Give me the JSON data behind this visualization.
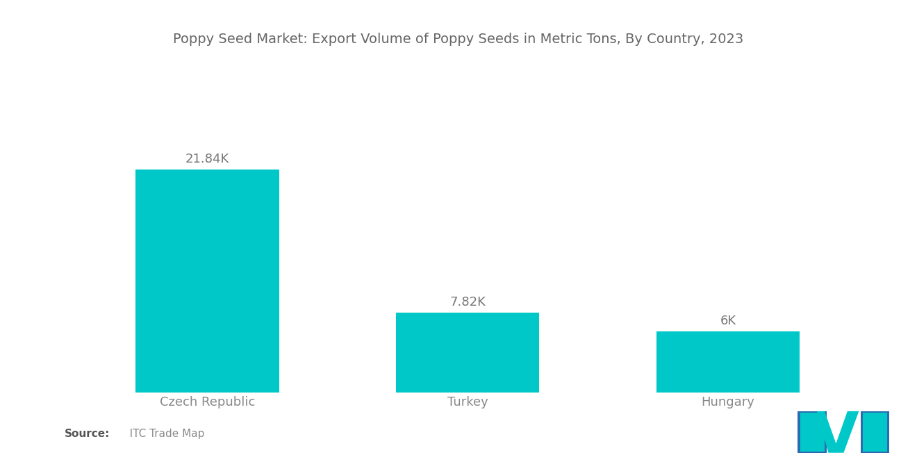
{
  "title": "Poppy Seed Market: Export Volume of Poppy Seeds in Metric Tons, By Country, 2023",
  "categories": [
    "Czech Republic",
    "Turkey",
    "Hungary"
  ],
  "values": [
    21840,
    7820,
    6000
  ],
  "labels": [
    "21.84K",
    "7.82K",
    "6K"
  ],
  "bar_color": "#00C8C8",
  "background_color": "#FFFFFF",
  "title_color": "#666666",
  "label_color": "#777777",
  "tick_color": "#888888",
  "source_bold": "Source:",
  "source_rest": "   ITC Trade Map",
  "ylim": [
    0,
    28000
  ],
  "bar_width": 0.55,
  "title_fontsize": 14,
  "label_fontsize": 13,
  "tick_fontsize": 13,
  "source_fontsize": 11,
  "logo_blue": "#2B6CB0",
  "logo_teal": "#00C8C8"
}
